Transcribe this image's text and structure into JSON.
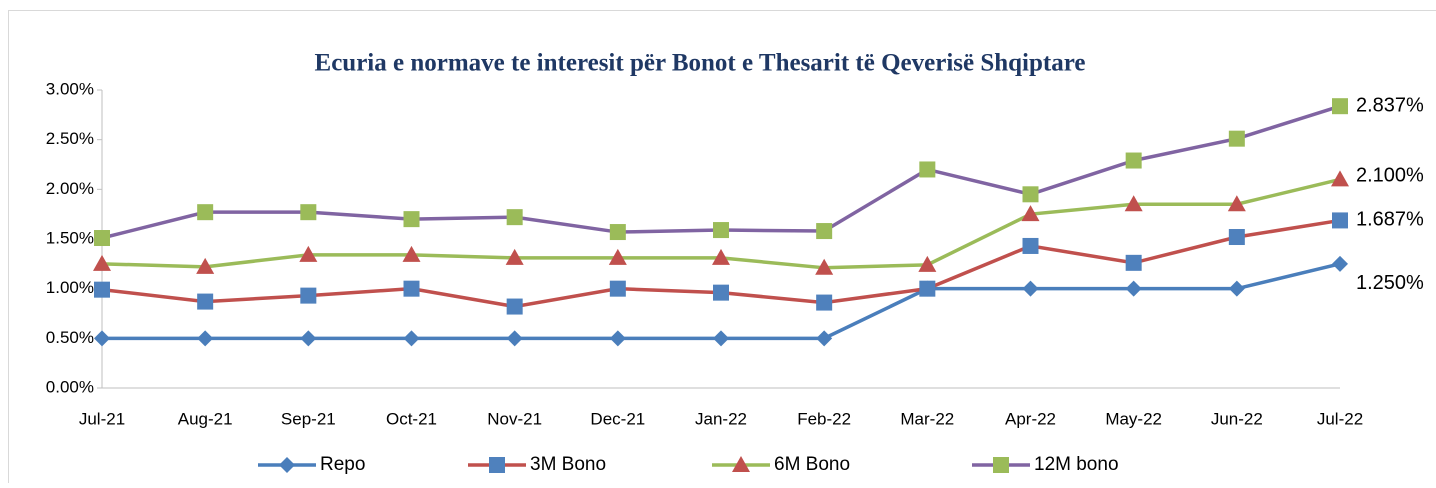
{
  "chart_data": {
    "type": "line",
    "title": "Ecuria e normave te interesit për Bonot e Thesarit të Qeverisë Shqiptare",
    "categories": [
      "Jul-21",
      "Aug-21",
      "Sep-21",
      "Oct-21",
      "Nov-21",
      "Dec-21",
      "Jan-22",
      "Feb-22",
      "Mar-22",
      "Apr-22",
      "May-22",
      "Jun-22",
      "Jul-22"
    ],
    "series": [
      {
        "name": "Repo",
        "color": "#4a7ebb",
        "marker": "diamond",
        "marker_color": "#4a7ebb",
        "values": [
          0.5,
          0.5,
          0.5,
          0.5,
          0.5,
          0.5,
          0.5,
          0.5,
          1.0,
          1.0,
          1.0,
          1.0,
          1.25
        ],
        "value_labels": [
          null,
          null,
          null,
          null,
          null,
          null,
          null,
          null,
          null,
          null,
          null,
          null,
          "1.250%"
        ]
      },
      {
        "name": "3M Bono",
        "color": "#c0504d",
        "marker": "square",
        "marker_color": "#4f81bd",
        "values": [
          0.99,
          0.87,
          0.93,
          1.0,
          0.82,
          1.0,
          0.96,
          0.86,
          1.0,
          1.43,
          1.26,
          1.52,
          1.687
        ],
        "value_labels": [
          null,
          null,
          null,
          null,
          null,
          null,
          null,
          null,
          null,
          null,
          null,
          null,
          "1.687%"
        ]
      },
      {
        "name": "6M Bono",
        "color": "#9bbb59",
        "marker": "triangle",
        "marker_color": "#c0504d",
        "values": [
          1.25,
          1.22,
          1.34,
          1.34,
          1.31,
          1.31,
          1.31,
          1.21,
          1.24,
          1.75,
          1.85,
          1.85,
          2.1
        ],
        "value_labels": [
          null,
          null,
          null,
          null,
          null,
          null,
          null,
          null,
          null,
          null,
          null,
          null,
          "2.100%"
        ]
      },
      {
        "name": "12M bono",
        "color": "#8064a2",
        "marker": "square",
        "marker_color": "#9bbb59",
        "values": [
          1.51,
          1.77,
          1.77,
          1.7,
          1.72,
          1.57,
          1.59,
          1.58,
          2.2,
          1.95,
          2.29,
          2.51,
          2.837
        ],
        "value_labels": [
          null,
          null,
          null,
          null,
          null,
          null,
          null,
          null,
          null,
          null,
          null,
          null,
          "2.837%"
        ]
      }
    ],
    "ylim": [
      0,
      3
    ],
    "yticks": [
      {
        "value": 0,
        "label": "0.00%"
      },
      {
        "value": 0.5,
        "label": "0.50%"
      },
      {
        "value": 1,
        "label": "1.00%"
      },
      {
        "value": 1.5,
        "label": "1.50%"
      },
      {
        "value": 2,
        "label": "2.00%"
      },
      {
        "value": 2.5,
        "label": "2.50%"
      },
      {
        "value": 3,
        "label": "3.00%"
      }
    ],
    "grid": false,
    "legend": "bottom"
  }
}
